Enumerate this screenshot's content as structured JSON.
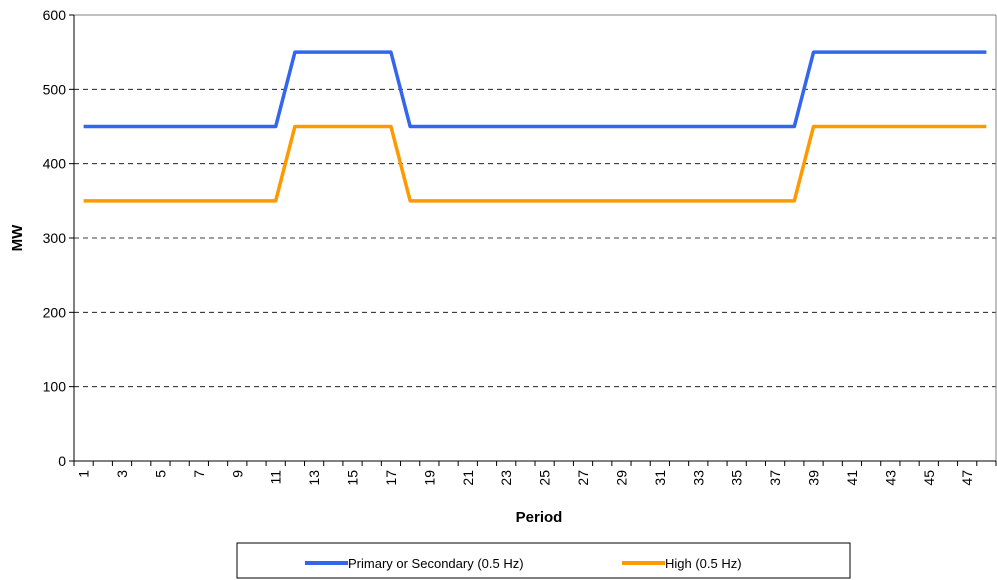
{
  "chart_data": {
    "type": "line",
    "title": "",
    "xlabel": "Period",
    "ylabel": "MW",
    "ylim": [
      0,
      600
    ],
    "yticks": [
      0,
      100,
      200,
      300,
      400,
      500,
      600
    ],
    "grid": "horizontal dashed",
    "legend_position": "bottom",
    "x": [
      1,
      2,
      3,
      4,
      5,
      6,
      7,
      8,
      9,
      10,
      11,
      12,
      13,
      14,
      15,
      16,
      17,
      18,
      19,
      20,
      21,
      22,
      23,
      24,
      25,
      26,
      27,
      28,
      29,
      30,
      31,
      32,
      33,
      34,
      35,
      36,
      37,
      38,
      39,
      40,
      41,
      42,
      43,
      44,
      45,
      46,
      47,
      48
    ],
    "xtick_labels": [
      "1",
      "3",
      "5",
      "7",
      "9",
      "11",
      "13",
      "15",
      "17",
      "19",
      "21",
      "23",
      "25",
      "27",
      "29",
      "31",
      "33",
      "35",
      "37",
      "39",
      "41",
      "43",
      "45",
      "47"
    ],
    "series": [
      {
        "name": "Primary or Secondary (0.5 Hz)",
        "color": "#3366ee",
        "values": [
          450,
          450,
          450,
          450,
          450,
          450,
          450,
          450,
          450,
          450,
          450,
          550,
          550,
          550,
          550,
          550,
          550,
          450,
          450,
          450,
          450,
          450,
          450,
          450,
          450,
          450,
          450,
          450,
          450,
          450,
          450,
          450,
          450,
          450,
          450,
          450,
          450,
          450,
          550,
          550,
          550,
          550,
          550,
          550,
          550,
          550,
          550,
          550
        ]
      },
      {
        "name": "High (0.5 Hz)",
        "color": "#ff9900",
        "values": [
          350,
          350,
          350,
          350,
          350,
          350,
          350,
          350,
          350,
          350,
          350,
          450,
          450,
          450,
          450,
          450,
          450,
          350,
          350,
          350,
          350,
          350,
          350,
          350,
          350,
          350,
          350,
          350,
          350,
          350,
          350,
          350,
          350,
          350,
          350,
          350,
          350,
          350,
          450,
          450,
          450,
          450,
          450,
          450,
          450,
          450,
          450,
          450
        ]
      }
    ]
  }
}
